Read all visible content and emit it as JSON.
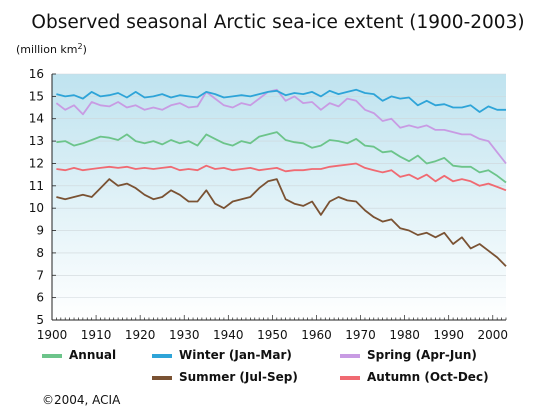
{
  "chart_data": {
    "type": "line",
    "title": "Observed seasonal Arctic sea-ice extent (1900-2003)",
    "ylabel_prefix": "(million km",
    "ylabel_sup": "2",
    "ylabel_suffix": ")",
    "xlim": [
      1900,
      2003
    ],
    "ylim": [
      5,
      16
    ],
    "x_ticks": [
      1900,
      1910,
      1920,
      1930,
      1940,
      1950,
      1960,
      1970,
      1980,
      1990,
      2000
    ],
    "y_ticks": [
      5,
      6,
      7,
      8,
      9,
      10,
      11,
      12,
      13,
      14,
      15,
      16
    ],
    "grid": "horizontal",
    "background_gradient": [
      "#bfe3ef",
      "#ffffff"
    ],
    "legend_placement": "bottom",
    "series": [
      {
        "name": "Annual",
        "color": "#6cc48a",
        "x": [
          1901,
          1903,
          1905,
          1907,
          1909,
          1911,
          1913,
          1915,
          1917,
          1919,
          1921,
          1923,
          1925,
          1927,
          1929,
          1931,
          1933,
          1935,
          1937,
          1939,
          1941,
          1943,
          1945,
          1947,
          1949,
          1951,
          1953,
          1955,
          1957,
          1959,
          1961,
          1963,
          1965,
          1967,
          1969,
          1971,
          1973,
          1975,
          1977,
          1979,
          1981,
          1983,
          1985,
          1987,
          1989,
          1991,
          1993,
          1995,
          1997,
          1999,
          2001,
          2003
        ],
        "y": [
          12.95,
          13.0,
          12.8,
          12.9,
          13.05,
          13.2,
          13.15,
          13.05,
          13.3,
          13.0,
          12.9,
          13.0,
          12.85,
          13.05,
          12.9,
          13.0,
          12.8,
          13.3,
          13.1,
          12.9,
          12.8,
          13.0,
          12.9,
          13.2,
          13.3,
          13.4,
          13.05,
          12.95,
          12.9,
          12.7,
          12.8,
          13.05,
          13.0,
          12.9,
          13.1,
          12.8,
          12.75,
          12.5,
          12.55,
          12.3,
          12.1,
          12.35,
          12.0,
          12.1,
          12.25,
          11.9,
          11.85,
          11.85,
          11.6,
          11.7,
          11.45,
          11.15
        ]
      },
      {
        "name": "Winter (Jan-Mar)",
        "color": "#2ea4d8",
        "x": [
          1901,
          1903,
          1905,
          1907,
          1909,
          1911,
          1913,
          1915,
          1917,
          1919,
          1921,
          1923,
          1925,
          1927,
          1929,
          1931,
          1933,
          1935,
          1937,
          1939,
          1941,
          1943,
          1945,
          1947,
          1949,
          1951,
          1953,
          1955,
          1957,
          1959,
          1961,
          1963,
          1965,
          1967,
          1969,
          1971,
          1973,
          1975,
          1977,
          1979,
          1981,
          1983,
          1985,
          1987,
          1989,
          1991,
          1993,
          1995,
          1997,
          1999,
          2001,
          2003
        ],
        "y": [
          15.1,
          15.0,
          15.05,
          14.9,
          15.2,
          15.0,
          15.05,
          15.15,
          14.95,
          15.2,
          14.95,
          15.0,
          15.1,
          14.95,
          15.05,
          15.0,
          14.95,
          15.2,
          15.1,
          14.95,
          15.0,
          15.05,
          15.0,
          15.1,
          15.2,
          15.25,
          15.05,
          15.15,
          15.1,
          15.2,
          15.0,
          15.25,
          15.1,
          15.2,
          15.3,
          15.15,
          15.1,
          14.8,
          15.0,
          14.9,
          14.95,
          14.6,
          14.8,
          14.6,
          14.65,
          14.5,
          14.5,
          14.6,
          14.3,
          14.55,
          14.4,
          14.4
        ]
      },
      {
        "name": "Spring (Apr-Jun)",
        "color": "#c89be3",
        "x": [
          1901,
          1903,
          1905,
          1907,
          1909,
          1911,
          1913,
          1915,
          1917,
          1919,
          1921,
          1923,
          1925,
          1927,
          1929,
          1931,
          1933,
          1935,
          1937,
          1939,
          1941,
          1943,
          1945,
          1947,
          1949,
          1951,
          1953,
          1955,
          1957,
          1959,
          1961,
          1963,
          1965,
          1967,
          1969,
          1971,
          1973,
          1975,
          1977,
          1979,
          1981,
          1983,
          1985,
          1987,
          1989,
          1991,
          1993,
          1995,
          1997,
          1999,
          2001,
          2003
        ],
        "y": [
          14.7,
          14.4,
          14.6,
          14.2,
          14.75,
          14.6,
          14.55,
          14.75,
          14.5,
          14.6,
          14.4,
          14.5,
          14.4,
          14.6,
          14.7,
          14.5,
          14.55,
          15.2,
          14.9,
          14.6,
          14.5,
          14.7,
          14.6,
          14.9,
          15.2,
          15.3,
          14.8,
          15.0,
          14.7,
          14.75,
          14.4,
          14.7,
          14.55,
          14.9,
          14.8,
          14.4,
          14.25,
          13.9,
          14.0,
          13.6,
          13.7,
          13.6,
          13.7,
          13.5,
          13.5,
          13.4,
          13.3,
          13.3,
          13.1,
          13.0,
          12.5,
          12.0
        ]
      },
      {
        "name": "Summer (Jul-Sep)",
        "color": "#7a5233",
        "x": [
          1901,
          1903,
          1905,
          1907,
          1909,
          1911,
          1913,
          1915,
          1917,
          1919,
          1921,
          1923,
          1925,
          1927,
          1929,
          1931,
          1933,
          1935,
          1937,
          1939,
          1941,
          1943,
          1945,
          1947,
          1949,
          1951,
          1953,
          1955,
          1957,
          1959,
          1961,
          1963,
          1965,
          1967,
          1969,
          1971,
          1973,
          1975,
          1977,
          1979,
          1981,
          1983,
          1985,
          1987,
          1989,
          1991,
          1993,
          1995,
          1997,
          1999,
          2001,
          2003
        ],
        "y": [
          10.5,
          10.4,
          10.5,
          10.6,
          10.5,
          10.9,
          11.3,
          11.0,
          11.1,
          10.9,
          10.6,
          10.4,
          10.5,
          10.8,
          10.6,
          10.3,
          10.3,
          10.8,
          10.2,
          10.0,
          10.3,
          10.4,
          10.5,
          10.9,
          11.2,
          11.3,
          10.4,
          10.2,
          10.1,
          10.3,
          9.7,
          10.3,
          10.5,
          10.35,
          10.3,
          9.9,
          9.6,
          9.4,
          9.5,
          9.1,
          9.0,
          8.8,
          8.9,
          8.7,
          8.9,
          8.4,
          8.7,
          8.2,
          8.4,
          8.1,
          7.8,
          7.4
        ]
      },
      {
        "name": "Autumn (Oct-Dec)",
        "color": "#f06a72",
        "x": [
          1901,
          1903,
          1905,
          1907,
          1909,
          1911,
          1913,
          1915,
          1917,
          1919,
          1921,
          1923,
          1925,
          1927,
          1929,
          1931,
          1933,
          1935,
          1937,
          1939,
          1941,
          1943,
          1945,
          1947,
          1949,
          1951,
          1953,
          1955,
          1957,
          1959,
          1961,
          1963,
          1965,
          1967,
          1969,
          1971,
          1973,
          1975,
          1977,
          1979,
          1981,
          1983,
          1985,
          1987,
          1989,
          1991,
          1993,
          1995,
          1997,
          1999,
          2001,
          2003
        ],
        "y": [
          11.75,
          11.7,
          11.8,
          11.7,
          11.75,
          11.8,
          11.85,
          11.8,
          11.85,
          11.75,
          11.8,
          11.75,
          11.8,
          11.85,
          11.7,
          11.75,
          11.7,
          11.9,
          11.75,
          11.8,
          11.7,
          11.75,
          11.8,
          11.7,
          11.75,
          11.8,
          11.65,
          11.7,
          11.7,
          11.75,
          11.75,
          11.85,
          11.9,
          11.95,
          12.0,
          11.8,
          11.7,
          11.6,
          11.7,
          11.4,
          11.5,
          11.3,
          11.5,
          11.2,
          11.45,
          11.2,
          11.3,
          11.2,
          11.0,
          11.1,
          10.95,
          10.8
        ]
      }
    ]
  },
  "footer": {
    "credit": "©2004, ACIA"
  }
}
